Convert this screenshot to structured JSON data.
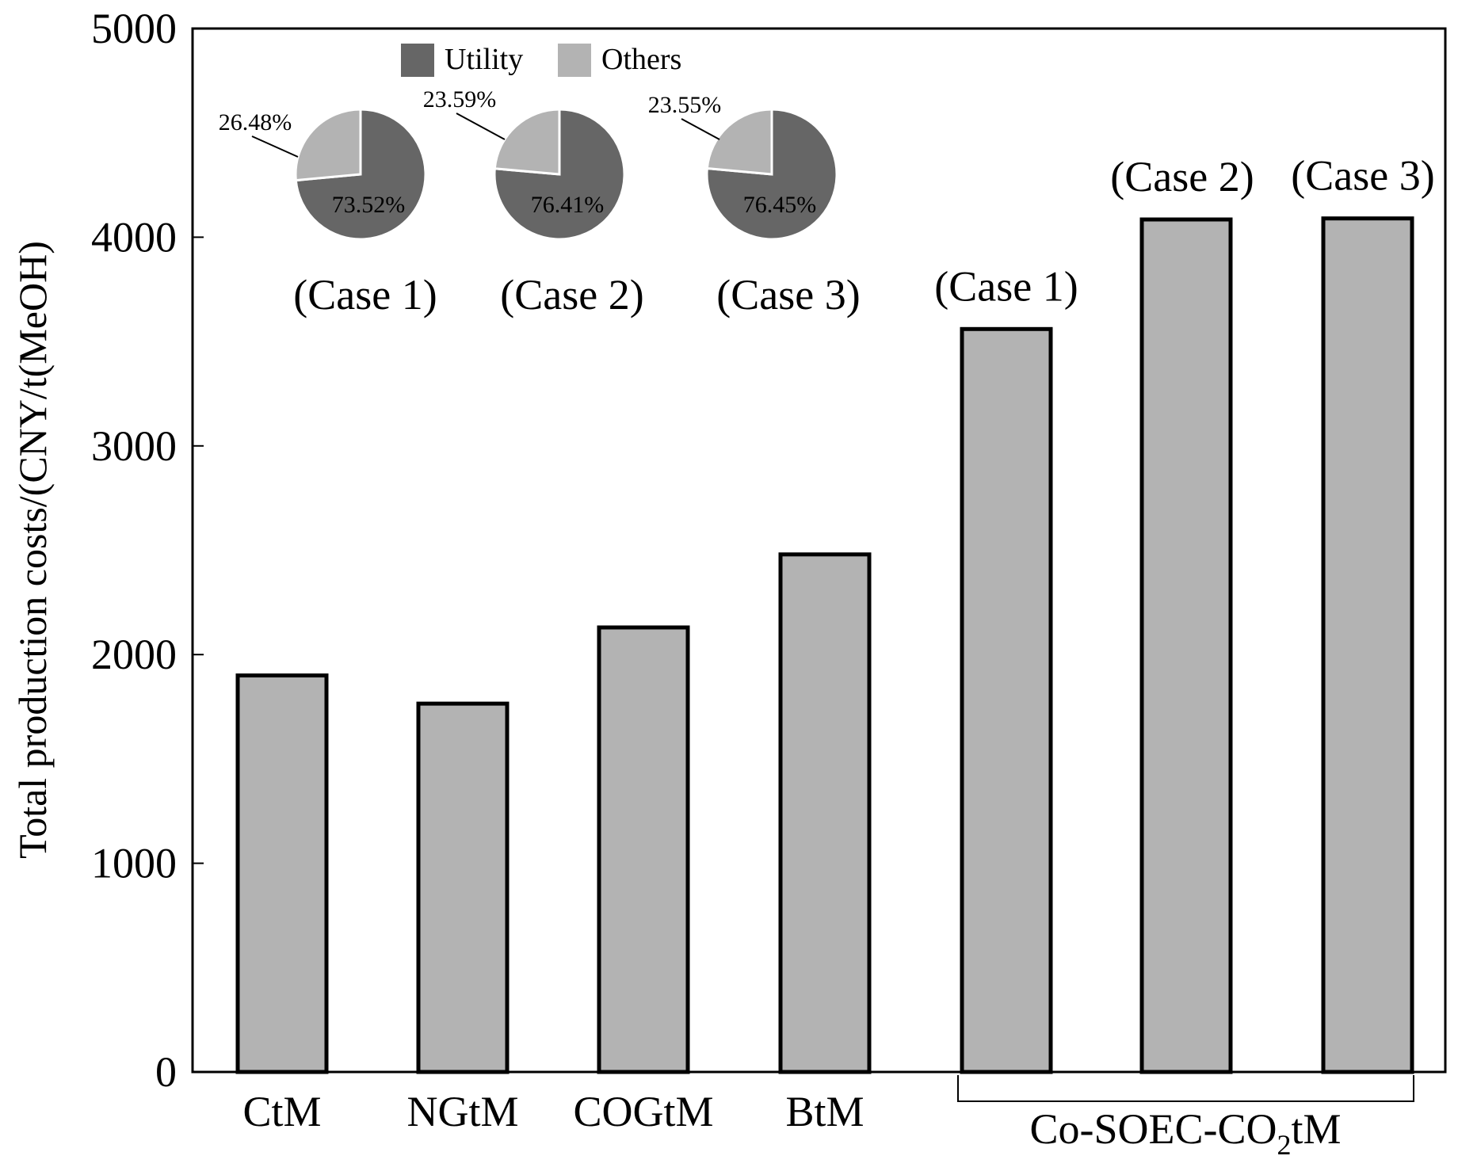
{
  "chart_data": {
    "type": "bar",
    "ylabel": "Total production costs/(CNY/t(MeOH)",
    "ylim": [
      0,
      5000
    ],
    "yticks": [
      0,
      1000,
      2000,
      3000,
      4000,
      5000
    ],
    "categories": [
      "CtM",
      "NGtM",
      "COGtM",
      "BtM",
      "(Case 1)",
      "(Case 2)",
      "(Case 3)"
    ],
    "values": [
      1900,
      1765,
      2130,
      2480,
      3560,
      4085,
      4090
    ],
    "group_label": {
      "prefix": "Co-SOEC-CO",
      "subscript": "2",
      "suffix": "tM"
    },
    "bar_color": "#b3b3b3",
    "bar_edge_color": "#000000",
    "grid": false,
    "inset_pies": {
      "legend": [
        {
          "name": "Utility",
          "color": "#666666"
        },
        {
          "name": "Others",
          "color": "#b3b3b3"
        }
      ],
      "pies": [
        {
          "case_label": "(Case 1)",
          "utility": 73.52,
          "others": 26.48,
          "utility_label": "73.52%",
          "others_label": "26.48%"
        },
        {
          "case_label": "(Case 2)",
          "utility": 76.41,
          "others": 23.59,
          "utility_label": "76.41%",
          "others_label": "23.59%"
        },
        {
          "case_label": "(Case 3)",
          "utility": 76.45,
          "others": 23.55,
          "utility_label": "76.45%",
          "others_label": "23.55%"
        }
      ]
    }
  }
}
